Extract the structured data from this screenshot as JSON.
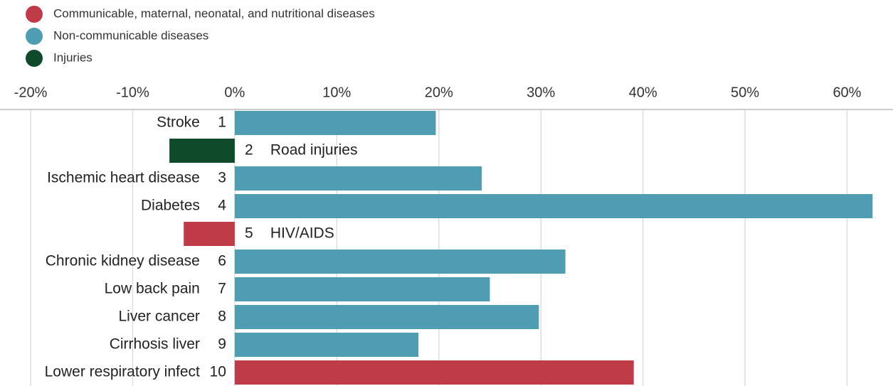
{
  "chart_data": {
    "type": "bar",
    "orientation": "horizontal",
    "categories": [
      "Stroke",
      "Road injuries",
      "Ischemic heart disease",
      "Diabetes",
      "HIV/AIDS",
      "Chronic kidney disease",
      "Low back pain",
      "Liver cancer",
      "Cirrhosis liver",
      "Lower respiratory infect"
    ],
    "ranks": [
      1,
      2,
      3,
      4,
      5,
      6,
      7,
      8,
      9,
      10
    ],
    "series": [
      {
        "name": "Communicable, maternal, neonatal, and nutritional diseases",
        "color": "#bf3b47",
        "values": [
          null,
          null,
          null,
          null,
          -5.0,
          null,
          null,
          null,
          null,
          39.1
        ]
      },
      {
        "name": "Non-communicable diseases",
        "color": "#4f9db2",
        "values": [
          19.7,
          null,
          24.2,
          62.5,
          null,
          32.4,
          25.0,
          29.8,
          18.0,
          null
        ]
      },
      {
        "name": "Injuries",
        "color": "#0f4a2a",
        "values": [
          null,
          -6.4,
          null,
          null,
          null,
          null,
          null,
          null,
          null,
          null
        ]
      }
    ],
    "xlim": [
      -23,
      64.5
    ],
    "xticks": [
      {
        "value": -20,
        "label": "-20%"
      },
      {
        "value": -10,
        "label": "-10%"
      },
      {
        "value": 0,
        "label": "0%"
      },
      {
        "value": 10,
        "label": "10%"
      },
      {
        "value": 20,
        "label": "20%"
      },
      {
        "value": 30,
        "label": "30%"
      },
      {
        "value": 40,
        "label": "40%"
      },
      {
        "value": 50,
        "label": "50%"
      },
      {
        "value": 60,
        "label": "60%"
      }
    ],
    "grid": true,
    "legend": "top-left"
  }
}
